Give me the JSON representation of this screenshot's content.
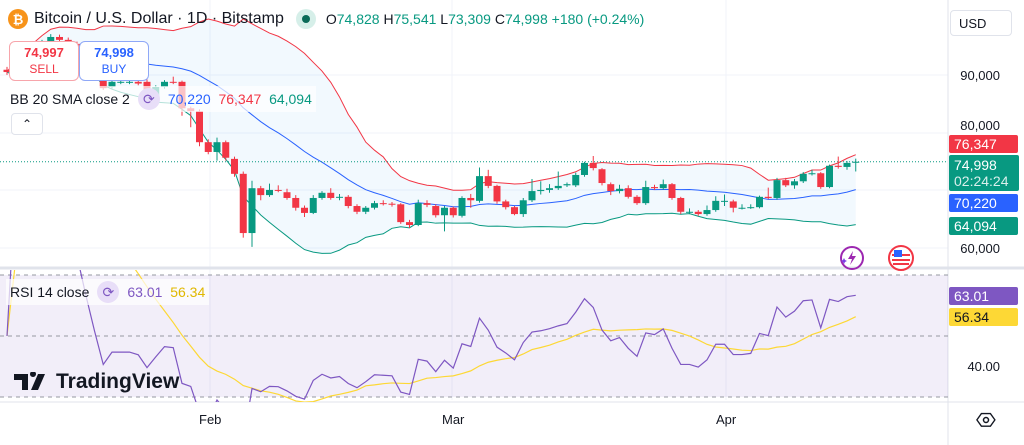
{
  "header": {
    "symbol_icon": "bitcoin-icon",
    "symbol_glyph": "₿",
    "title": "Bitcoin / U.S. Dollar · 1D · Bitstamp",
    "o_label": "O",
    "o": "74,828",
    "h_label": "H",
    "h": "75,541",
    "l_label": "L",
    "l": "73,309",
    "c_label": "C",
    "c": "74,998",
    "change": "+180 (+0.24%)"
  },
  "currency": "USD",
  "trade": {
    "sell_price": "74,997",
    "sell_label": "SELL",
    "buy_price": "74,998",
    "buy_label": "BUY"
  },
  "bb_legend": {
    "name": "BB 20 SMA close 2",
    "basis": "70,220",
    "upper": "76,347",
    "lower": "64,094"
  },
  "rsi_legend": {
    "name": "RSI 14 close",
    "rsi": "63.01",
    "ma": "56.34"
  },
  "collapse_glyph": "⌃",
  "price_axis": {
    "labels": [
      "90,000",
      "80,000",
      "60,000"
    ],
    "last_price": "74,998",
    "countdown": "02:24:24",
    "bb_upper": "76,347",
    "bb_basis": "70,220",
    "bb_lower": "64,094"
  },
  "rsi_axis": {
    "labels": [
      "40.00"
    ],
    "rsi": "63.01",
    "ma": "56.34"
  },
  "time_axis": [
    "Feb",
    "Mar",
    "Apr"
  ],
  "brand": "TradingView",
  "colors": {
    "up": "#089981",
    "down": "#f23645",
    "bb_basis": "#2962ff",
    "bb_upper": "#f23645",
    "bb_lower": "#089981",
    "rsi": "#7e57c2",
    "rsi_ma": "#fdd835",
    "btc": "#f7931a"
  },
  "chart_data": {
    "type": "candlestick",
    "interval": "1D",
    "price_range": [
      58000,
      98000
    ],
    "rsi_range": [
      30,
      70
    ],
    "rsi_bands": [
      70,
      50,
      30
    ],
    "x_ticks": [
      "Feb",
      "Mar",
      "Apr"
    ],
    "ohlc": [
      [
        91000,
        91500,
        90100,
        90600
      ],
      [
        90600,
        92400,
        90300,
        92000
      ],
      [
        92000,
        93900,
        91700,
        93500
      ],
      [
        93500,
        94900,
        93100,
        94500
      ],
      [
        94500,
        96200,
        94100,
        95800
      ],
      [
        95800,
        97200,
        95400,
        96700
      ],
      [
        96700,
        97100,
        95800,
        96200
      ],
      [
        96200,
        96600,
        95100,
        95500
      ],
      [
        95500,
        95900,
        94300,
        94800
      ],
      [
        94800,
        95100,
        92900,
        93200
      ],
      [
        93200,
        93600,
        90700,
        91000
      ],
      [
        89700,
        90200,
        87500,
        87800
      ],
      [
        88000,
        89200,
        87700,
        88900
      ],
      [
        88900,
        89300,
        88500,
        88900
      ],
      [
        88900,
        89300,
        88500,
        88900
      ],
      [
        88900,
        89200,
        88300,
        88600
      ],
      [
        88900,
        89300,
        86800,
        87100
      ],
      [
        86300,
        88300,
        86000,
        88000
      ],
      [
        88000,
        89200,
        87700,
        88900
      ],
      [
        88900,
        89800,
        88500,
        88800
      ],
      [
        88900,
        89100,
        83000,
        84300
      ],
      [
        84300,
        84600,
        81000,
        83800
      ],
      [
        83800,
        84100,
        77700,
        78400
      ],
      [
        78400,
        78900,
        76300,
        76700
      ],
      [
        76700,
        79200,
        75200,
        78400
      ],
      [
        78400,
        78700,
        75200,
        75700
      ],
      [
        75500,
        75900,
        72400,
        72900
      ],
      [
        72900,
        73300,
        61800,
        62600
      ],
      [
        62600,
        71700,
        60200,
        70400
      ],
      [
        70400,
        70800,
        68300,
        69200
      ],
      [
        69200,
        71200,
        68900,
        70100
      ],
      [
        70100,
        70900,
        69700,
        70000
      ],
      [
        69700,
        70300,
        68400,
        68700
      ],
      [
        68700,
        69200,
        66500,
        67000
      ],
      [
        67000,
        67400,
        65400,
        66100
      ],
      [
        66100,
        69200,
        65900,
        68700
      ],
      [
        68700,
        69900,
        68400,
        69600
      ],
      [
        69600,
        70400,
        68400,
        68700
      ],
      [
        68900,
        69400,
        68300,
        68900
      ],
      [
        68900,
        69200,
        66900,
        67300
      ],
      [
        67300,
        67600,
        65900,
        66300
      ],
      [
        66300,
        67300,
        65900,
        67000
      ],
      [
        67000,
        68200,
        66700,
        67800
      ],
      [
        67800,
        68300,
        67400,
        67700
      ],
      [
        67700,
        68000,
        67200,
        67600
      ],
      [
        67600,
        67800,
        64200,
        64500
      ],
      [
        64500,
        64900,
        63500,
        64000
      ],
      [
        64000,
        68400,
        63800,
        67800
      ],
      [
        67800,
        68300,
        67100,
        67500
      ],
      [
        67300,
        67600,
        65300,
        65700
      ],
      [
        65700,
        67300,
        62900,
        67000
      ],
      [
        67000,
        67200,
        65300,
        65700
      ],
      [
        65600,
        69000,
        65300,
        68700
      ],
      [
        68700,
        69400,
        67000,
        68300
      ],
      [
        68200,
        74000,
        67900,
        72500
      ],
      [
        72500,
        73600,
        70400,
        70800
      ],
      [
        70800,
        71000,
        67700,
        68100
      ],
      [
        68100,
        68400,
        66700,
        67100
      ],
      [
        67100,
        67300,
        65700,
        65900
      ],
      [
        65900,
        68700,
        65400,
        68300
      ],
      [
        68300,
        72000,
        68000,
        69900
      ],
      [
        69900,
        71600,
        69300,
        70100
      ],
      [
        70100,
        71100,
        69600,
        70400
      ],
      [
        70400,
        73300,
        70100,
        70800
      ],
      [
        70900,
        71400,
        70600,
        71100
      ],
      [
        70900,
        73100,
        70600,
        72700
      ],
      [
        72700,
        75000,
        72400,
        74800
      ],
      [
        74800,
        76000,
        73500,
        73900
      ],
      [
        73700,
        73900,
        70900,
        71300
      ],
      [
        71100,
        71400,
        69200,
        69900
      ],
      [
        69900,
        71000,
        69500,
        70300
      ],
      [
        70400,
        70900,
        68600,
        68900
      ],
      [
        68900,
        69200,
        67500,
        67800
      ],
      [
        67800,
        71700,
        67500,
        70600
      ],
      [
        70600,
        71000,
        70100,
        70400
      ],
      [
        70400,
        71900,
        70100,
        71100
      ],
      [
        71100,
        71300,
        68400,
        68700
      ],
      [
        68700,
        68900,
        65900,
        66300
      ],
      [
        66300,
        66900,
        65900,
        66300
      ],
      [
        66300,
        66600,
        65600,
        65900
      ],
      [
        65900,
        67400,
        65600,
        66600
      ],
      [
        66600,
        69000,
        66300,
        68200
      ],
      [
        68200,
        69300,
        67300,
        68200
      ],
      [
        68100,
        68400,
        66200,
        67000
      ],
      [
        67000,
        67600,
        66700,
        67000
      ],
      [
        67000,
        67600,
        66800,
        67100
      ],
      [
        67100,
        69100,
        66900,
        68900
      ],
      [
        68900,
        70500,
        68500,
        68700
      ],
      [
        68700,
        72200,
        68400,
        71800
      ],
      [
        71800,
        72200,
        70600,
        70900
      ],
      [
        70900,
        72000,
        70300,
        71600
      ],
      [
        71600,
        73200,
        71300,
        72900
      ],
      [
        73000,
        73600,
        72600,
        73000
      ],
      [
        73000,
        73200,
        70300,
        70600
      ],
      [
        70600,
        74500,
        70400,
        74300
      ],
      [
        74300,
        75900,
        73800,
        74100
      ],
      [
        74100,
        75100,
        73600,
        74800
      ],
      [
        74828,
        75541,
        73309,
        74998
      ]
    ]
  }
}
